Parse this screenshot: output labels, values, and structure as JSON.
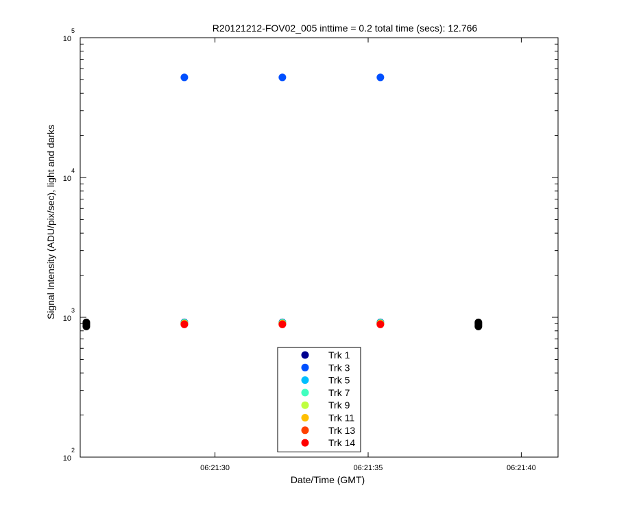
{
  "chart_data": {
    "type": "scatter",
    "title": "R20121212-FOV02_005 inttime = 0.2 total time (secs): 12.766",
    "xlabel": "Date/Time (GMT)",
    "ylabel": "Signal Intensity (ADU/pix/sec), light and darks",
    "y_scale": "log",
    "ylim": [
      100,
      100000
    ],
    "xlim": [
      "06:21:25.6",
      "06:21:41.2"
    ],
    "x_ticks": [
      "06:21:30",
      "06:21:35",
      "06:21:40"
    ],
    "y_ticks": [
      {
        "base": "10",
        "exp": "2",
        "value": 100
      },
      {
        "base": "10",
        "exp": "3",
        "value": 1000
      },
      {
        "base": "10",
        "exp": "4",
        "value": 10000
      },
      {
        "base": "10",
        "exp": "5",
        "value": 100000
      }
    ],
    "legend_position": "bottom-center",
    "series": [
      {
        "name": "Trk 1",
        "color": "#00008f",
        "x": [
          "06:21:29.0",
          "06:21:32.2",
          "06:21:35.4"
        ],
        "y": [
          920,
          920,
          920
        ]
      },
      {
        "name": "Trk 3",
        "color": "#0050ff",
        "x": [
          "06:21:29.0",
          "06:21:32.2",
          "06:21:35.4"
        ],
        "y": [
          52000,
          52000,
          52000
        ]
      },
      {
        "name": "Trk 5",
        "color": "#00bfff",
        "x": [
          "06:21:29.0",
          "06:21:32.2",
          "06:21:35.4"
        ],
        "y": [
          915,
          915,
          915
        ]
      },
      {
        "name": "Trk 7",
        "color": "#40ffbf",
        "x": [
          "06:21:29.0",
          "06:21:32.2",
          "06:21:35.4"
        ],
        "y": [
          910,
          910,
          910
        ]
      },
      {
        "name": "Trk 9",
        "color": "#bfff40",
        "x": [
          "06:21:29.0",
          "06:21:32.2",
          "06:21:35.4"
        ],
        "y": [
          905,
          905,
          905
        ]
      },
      {
        "name": "Trk 11",
        "color": "#ffbf00",
        "x": [
          "06:21:29.0",
          "06:21:32.2",
          "06:21:35.4"
        ],
        "y": [
          900,
          900,
          900
        ]
      },
      {
        "name": "Trk 13",
        "color": "#ff4000",
        "x": [
          "06:21:29.0",
          "06:21:32.2",
          "06:21:35.4"
        ],
        "y": [
          895,
          895,
          895
        ]
      },
      {
        "name": "Trk 14",
        "color": "#ff0000",
        "x": [
          "06:21:29.0",
          "06:21:32.2",
          "06:21:35.4"
        ],
        "y": [
          890,
          890,
          890
        ]
      }
    ],
    "dark_frames": {
      "color": "#000000",
      "x": [
        "06:21:25.8",
        "06:21:25.8",
        "06:21:25.8",
        "06:21:25.8",
        "06:21:38.6",
        "06:21:38.6",
        "06:21:38.6",
        "06:21:38.6"
      ],
      "y": [
        920,
        900,
        880,
        860,
        920,
        900,
        880,
        860
      ]
    }
  }
}
